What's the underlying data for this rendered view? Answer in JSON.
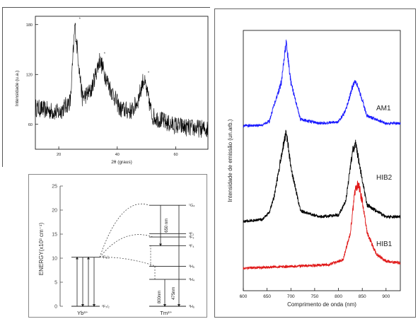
{
  "chart_data": [
    {
      "type": "line",
      "xlabel": "2θ (graus)",
      "ylabel": "Intensidade (u.a.)",
      "xlim": [
        12,
        71
      ],
      "ylim": [
        30,
        190
      ],
      "x_ticks": [
        20,
        40,
        60
      ],
      "y_ticks": [
        60,
        120,
        180
      ],
      "x_tick_labels": [
        "20",
        "40",
        "60"
      ],
      "y_tick_labels": [
        "60",
        "120",
        "180"
      ],
      "peaks": [
        {
          "x": 25.5,
          "y": 180,
          "label": "*"
        },
        {
          "x": 34.0,
          "y": 138,
          "label": "*"
        },
        {
          "x": 49.0,
          "y": 115,
          "label": "*"
        }
      ],
      "series": [
        {
          "values_desc": "noisy diffractogram",
          "x": [
            12,
            20,
            24,
            25.5,
            28,
            31,
            34,
            37,
            41,
            45,
            47,
            49,
            52,
            58,
            64,
            71
          ],
          "y": [
            80,
            74,
            88,
            180,
            92,
            100,
            138,
            108,
            78,
            76,
            88,
            115,
            70,
            60,
            56,
            54
          ]
        }
      ]
    },
    {
      "type": "diagram",
      "ylabel": "ENERGY(x10³ cm⁻¹)",
      "ylim": [
        0,
        25
      ],
      "y_ticks": [
        0,
        5,
        10,
        15,
        20,
        25
      ],
      "y_tick_labels": [
        "0",
        "5",
        "10",
        "15",
        "20",
        "25"
      ],
      "ions": [
        "Yb³⁺",
        "Tm³⁺"
      ],
      "yb_levels": [
        {
          "label": "²F₇/₂",
          "energy": 0
        },
        {
          "label": "²F₅/₂",
          "energy": 10.2
        }
      ],
      "tm_levels": [
        {
          "label": "³H₆",
          "energy": 0
        },
        {
          "label": "³H₄",
          "energy": 5.6
        },
        {
          "label": "³H₅",
          "energy": 8.3
        },
        {
          "label": "³F₄",
          "energy": 12.6
        },
        {
          "label": "³F₃",
          "energy": 14.4
        },
        {
          "label": "³F₂",
          "energy": 15.1
        },
        {
          "label": "¹G₄",
          "energy": 21.0
        }
      ],
      "emissions": [
        "650 nm",
        "800nm",
        "475nm"
      ]
    },
    {
      "type": "line",
      "xlabel": "Comprimento de onda (nm)",
      "ylabel": "Intensidade de emissão (un.arb.)",
      "xlim": [
        600,
        930
      ],
      "x_ticks": [
        600,
        650,
        700,
        750,
        800,
        850,
        900
      ],
      "x_tick_labels": [
        "600",
        "650",
        "700",
        "750",
        "800",
        "850",
        "900"
      ],
      "series": [
        {
          "name": "AM1",
          "color": "#1a1aff",
          "offset": 2,
          "x": [
            600,
            640,
            655,
            665,
            680,
            690,
            700,
            720,
            760,
            800,
            815,
            830,
            836,
            845,
            860,
            900,
            930
          ],
          "y": [
            0,
            0.01,
            0.06,
            0.26,
            0.52,
            1.0,
            0.52,
            0.08,
            0.03,
            0.05,
            0.18,
            0.48,
            0.55,
            0.4,
            0.12,
            0.03,
            0.03
          ]
        },
        {
          "name": "HIB2",
          "color": "#000000",
          "offset": 1,
          "x": [
            600,
            640,
            655,
            665,
            680,
            690,
            700,
            720,
            760,
            800,
            815,
            830,
            836,
            845,
            860,
            900,
            930
          ],
          "y": [
            0,
            0.02,
            0.1,
            0.28,
            0.72,
            1.0,
            0.6,
            0.12,
            0.05,
            0.07,
            0.22,
            0.78,
            0.86,
            0.6,
            0.18,
            0.05,
            0.05
          ]
        },
        {
          "name": "HIB1",
          "color": "#e01818",
          "offset": 0,
          "x": [
            600,
            700,
            780,
            810,
            825,
            835,
            842,
            850,
            860,
            880,
            900,
            930
          ],
          "y": [
            0,
            0.02,
            0.04,
            0.1,
            0.42,
            0.92,
            1.0,
            0.78,
            0.42,
            0.16,
            0.08,
            0.06
          ]
        }
      ]
    }
  ]
}
